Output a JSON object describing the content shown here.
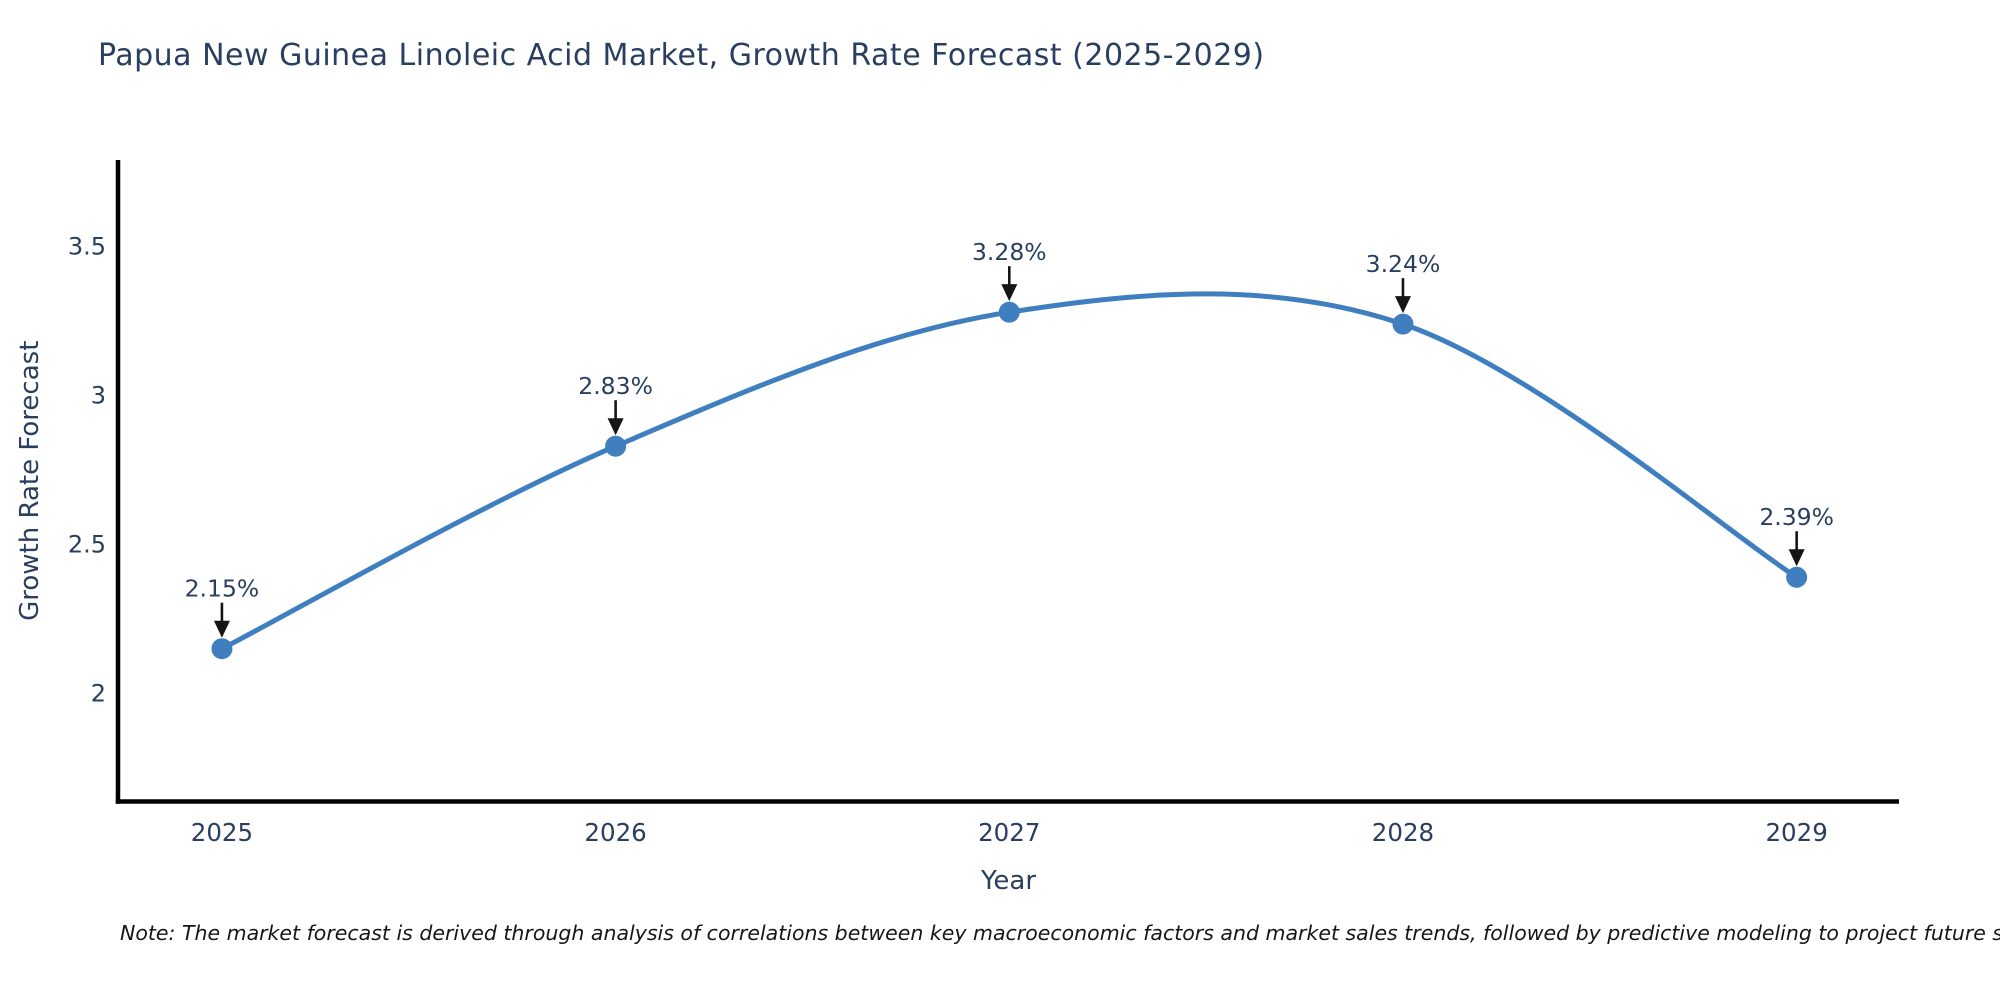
{
  "title": "Papua New Guinea Linoleic Acid Market, Growth Rate Forecast (2025-2029)",
  "note": "Note: The market forecast is derived through analysis of correlations between key macroeconomic factors and market sales trends, followed by predictive modeling to project future sales",
  "chart_data": {
    "type": "line",
    "title": "Papua New Guinea Linoleic Acid Market, Growth Rate Forecast (2025-2029)",
    "xlabel": "Year",
    "ylabel": "Growth Rate Forecast",
    "x": [
      2025,
      2026,
      2027,
      2028,
      2029
    ],
    "series": [
      {
        "name": "Growth Rate Forecast",
        "values": [
          2.15,
          2.83,
          3.28,
          3.24,
          2.39
        ]
      }
    ],
    "point_labels": [
      "2.15%",
      "2.83%",
      "3.28%",
      "3.24%",
      "2.39%"
    ],
    "xticks": [
      2025,
      2026,
      2027,
      2028,
      2029
    ],
    "yticks": [
      2,
      2.5,
      3,
      3.5
    ],
    "xlim": [
      2024.736,
      2029.26
    ],
    "ylim": [
      1.637,
      3.791
    ],
    "line_shape": "spline",
    "grid": false,
    "legend": "none",
    "colors": {
      "line": "#3f7fbf",
      "marker": "#3f7fbf",
      "axis_line": "#000000",
      "tick_text": "#2a3f5f",
      "label_text": "#2a3f5f",
      "arrow": "#151515"
    }
  }
}
